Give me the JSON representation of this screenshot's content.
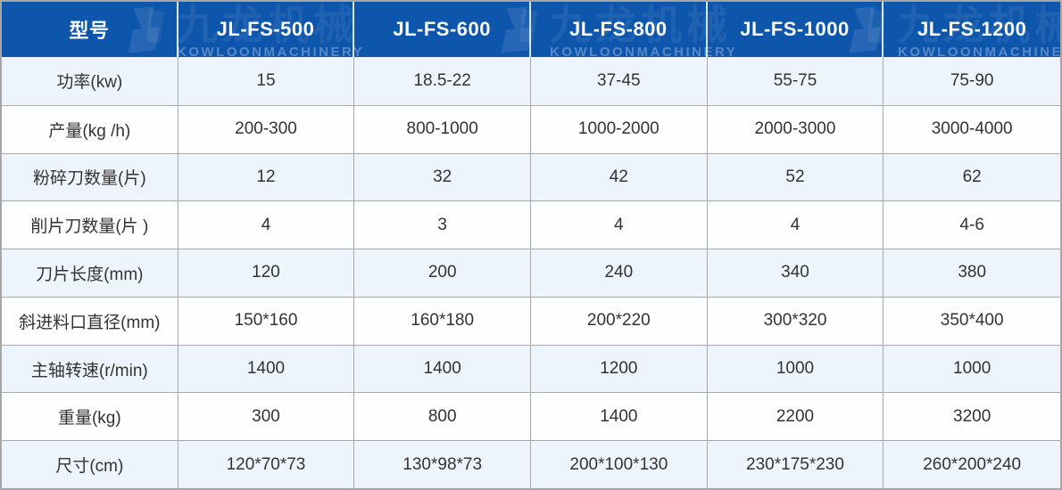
{
  "watermark": {
    "brand_cn": "九龙机械",
    "brand_en": "KOWLOONMACHINERY"
  },
  "colors": {
    "header_bg": "#0e55ac",
    "header_text": "#fafbfd",
    "row_alt_bg": "#eef4fb",
    "row_bg": "#fdfeff",
    "border": "#a9a9a9",
    "cell_text": "#333333"
  },
  "table": {
    "header": [
      "型号",
      "JL-FS-500",
      "JL-FS-600",
      "JL-FS-800",
      "JL-FS-1000",
      "JL-FS-1200"
    ],
    "rows": [
      {
        "label": "功率(kw)",
        "values": [
          "15",
          "18.5-22",
          "37-45",
          "55-75",
          "75-90"
        ]
      },
      {
        "label": "产量(kg /h)",
        "values": [
          "200-300",
          "800-1000",
          "1000-2000",
          "2000-3000",
          "3000-4000"
        ]
      },
      {
        "label": "粉碎刀数量(片)",
        "values": [
          "12",
          "32",
          "42",
          "52",
          "62"
        ]
      },
      {
        "label": "削片刀数量(片 )",
        "values": [
          "4",
          "3",
          "4",
          "4",
          "4-6"
        ]
      },
      {
        "label": "刀片长度(mm)",
        "values": [
          "120",
          "200",
          "240",
          "340",
          "380"
        ]
      },
      {
        "label": "斜进料口直径(mm)",
        "values": [
          "150*160",
          "160*180",
          "200*220",
          "300*320",
          "350*400"
        ]
      },
      {
        "label": "主轴转速(r/min)",
        "values": [
          "1400",
          "1400",
          "1200",
          "1000",
          "1000"
        ]
      },
      {
        "label": "重量(kg)",
        "values": [
          "300",
          "800",
          "1400",
          "2200",
          "3200"
        ]
      },
      {
        "label": "尺寸(cm)",
        "values": [
          "120*70*73",
          "130*98*73",
          "200*100*130",
          "230*175*230",
          "260*200*240"
        ]
      }
    ]
  }
}
